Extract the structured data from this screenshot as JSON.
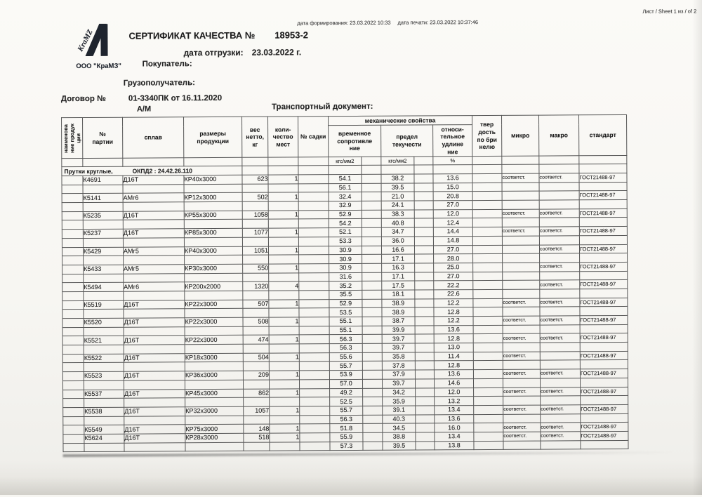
{
  "page": {
    "sheet_label": "Лист / Sheet   1 из / of   2",
    "formation_date": "дата формирования: 23.03.2022 10:33",
    "print_date": "дата печати: 23.03.2022 10:37:46"
  },
  "header": {
    "logo_brand": "KraMZ",
    "company_name": "ООО \"КраМЗ\"",
    "title": "СЕРТИФИКАТ КАЧЕСТВА №",
    "certificate_number": "18953-2",
    "shipping_date_label": "дата отгрузки:",
    "shipping_date_value": "23.03.2022 г.",
    "buyer_label": "Покупатель:",
    "consignee_label": "Грузополучатель:",
    "contract_label": "Договор №",
    "contract_value": "01-3340ПК от 16.11.2020",
    "transport_type": "А/М",
    "transport_doc_label": "Транспортный документ:"
  },
  "table": {
    "headers": {
      "product_name": "наименова\nние продук\nции",
      "batch": "№\nпартии",
      "alloy": "сплав",
      "size": "размеры\nпродукции",
      "weight": "вес\nнетто,\nкг",
      "places": "коли-\nчество\nмест",
      "sadka": "№ садки",
      "mech_group": "механические свойства",
      "tensile": "временное\nсопротивле\nние",
      "yield": "предел\nтекучести",
      "elongation": "относи-\nтельное\nудлине\nние",
      "hardness": "твер\nдость\nпо бри\nнелю",
      "micro": "микро",
      "macro": "макро",
      "standard": "стандарт",
      "unit_kgs1": "кгс/мм2",
      "unit_kgs2": "кгс/мм2",
      "unit_pct": "%"
    },
    "section": {
      "title": "Прутки круглые,",
      "okpd": "ОКПД2 : 24.42.26.110"
    },
    "rows": [
      {
        "batch": "К4691",
        "alloy": "Д16Т",
        "size": "КР40х3000",
        "weight": "623",
        "places": "1",
        "lines": [
          {
            "tensile": "54.1",
            "yield": "38.2",
            "elong": "13.6",
            "micro": "соответст.",
            "macro": "соответст.",
            "standard": "ГОСТ21488-97"
          },
          {
            "tensile": "56.1",
            "yield": "39.5",
            "elong": "15.0"
          }
        ]
      },
      {
        "batch": "К5141",
        "alloy": "АМг6",
        "size": "КР12х3000",
        "weight": "502",
        "places": "1",
        "lines": [
          {
            "tensile": "32.4",
            "yield": "21.0",
            "elong": "20.8",
            "standard": "ГОСТ21488-97"
          },
          {
            "tensile": "32.9",
            "yield": "24.1",
            "elong": "27.0"
          }
        ]
      },
      {
        "batch": "К5235",
        "alloy": "Д16Т",
        "size": "КР55х3000",
        "weight": "1058",
        "places": "1",
        "lines": [
          {
            "tensile": "52.9",
            "yield": "38.3",
            "elong": "12.0",
            "micro": "соответст.",
            "macro": "соответст.",
            "standard": "ГОСТ21488-97"
          },
          {
            "tensile": "54.2",
            "yield": "40.8",
            "elong": "12.4"
          }
        ]
      },
      {
        "batch": "К5237",
        "alloy": "Д16Т",
        "size": "КР85х3000",
        "weight": "1077",
        "places": "1",
        "lines": [
          {
            "tensile": "52.1",
            "yield": "34.7",
            "elong": "14.4",
            "micro": "соответст.",
            "macro": "соответст.",
            "standard": "ГОСТ21488-97"
          },
          {
            "tensile": "53.3",
            "yield": "36.0",
            "elong": "14.8"
          }
        ]
      },
      {
        "batch": "К5429",
        "alloy": "АМг5",
        "size": "КР40х3000",
        "weight": "1051",
        "places": "1",
        "lines": [
          {
            "tensile": "30.9",
            "yield": "16.6",
            "elong": "27.0",
            "macro": "соответст.",
            "standard": "ГОСТ21488-97"
          },
          {
            "tensile": "30.9",
            "yield": "17.1",
            "elong": "28.0"
          }
        ]
      },
      {
        "batch": "К5433",
        "alloy": "АМг5",
        "size": "КР30х3000",
        "weight": "550",
        "places": "1",
        "lines": [
          {
            "tensile": "30.9",
            "yield": "16.3",
            "elong": "25.0",
            "macro": "соответст.",
            "standard": "ГОСТ21488-97"
          },
          {
            "tensile": "31.6",
            "yield": "17.1",
            "elong": "27.0"
          }
        ]
      },
      {
        "batch": "К5494",
        "alloy": "АМг6",
        "size": "КР200х2000",
        "weight": "1320",
        "places": "4",
        "lines": [
          {
            "tensile": "35.2",
            "yield": "17.5",
            "elong": "22.2",
            "macro": "соответст.",
            "standard": "ГОСТ21488-97"
          },
          {
            "tensile": "35.5",
            "yield": "18.1",
            "elong": "22.6"
          }
        ]
      },
      {
        "batch": "К5519",
        "alloy": "Д16Т",
        "size": "КР22х3000",
        "weight": "507",
        "places": "1",
        "lines": [
          {
            "tensile": "52.9",
            "yield": "38.9",
            "elong": "12.2",
            "micro": "соответст.",
            "macro": "соответст.",
            "standard": "ГОСТ21488-97"
          },
          {
            "tensile": "53.5",
            "yield": "38.9",
            "elong": "12.8"
          }
        ]
      },
      {
        "batch": "К5520",
        "alloy": "Д16Т",
        "size": "КР22х3000",
        "weight": "508",
        "places": "1",
        "lines": [
          {
            "tensile": "55.1",
            "yield": "38.7",
            "elong": "12.2",
            "micro": "соответст.",
            "macro": "соответст.",
            "standard": "ГОСТ21488-97"
          },
          {
            "tensile": "55.1",
            "yield": "39.9",
            "elong": "13.6"
          }
        ]
      },
      {
        "batch": "К5521",
        "alloy": "Д16Т",
        "size": "КР22х3000",
        "weight": "474",
        "places": "1",
        "lines": [
          {
            "tensile": "56.3",
            "yield": "39.7",
            "elong": "12.8",
            "micro": "соответст.",
            "macro": "соответст.",
            "standard": "ГОСТ21488-97"
          },
          {
            "tensile": "56.3",
            "yield": "39.7",
            "elong": "13.0"
          }
        ]
      },
      {
        "batch": "К5522",
        "alloy": "Д16Т",
        "size": "КР18х3000",
        "weight": "504",
        "places": "1",
        "lines": [
          {
            "tensile": "55.6",
            "yield": "35.8",
            "elong": "11.4",
            "micro": "соответст.",
            "standard": "ГОСТ21488-97"
          },
          {
            "tensile": "55.7",
            "yield": "37.8",
            "elong": "12.8"
          }
        ]
      },
      {
        "batch": "К5523",
        "alloy": "Д16Т",
        "size": "КР36х3000",
        "weight": "209",
        "places": "1",
        "lines": [
          {
            "tensile": "53.9",
            "yield": "37.9",
            "elong": "13.6",
            "micro": "соответст.",
            "macro": "соответст.",
            "standard": "ГОСТ21488-97"
          },
          {
            "tensile": "57.0",
            "yield": "39.7",
            "elong": "14.6"
          }
        ]
      },
      {
        "batch": "К5537",
        "alloy": "Д16Т",
        "size": "КР45х3000",
        "weight": "862",
        "places": "1",
        "lines": [
          {
            "tensile": "49.2",
            "yield": "34.2",
            "elong": "12.0",
            "micro": "соответст.",
            "macro": "соответст.",
            "standard": "ГОСТ21488-97"
          },
          {
            "tensile": "52.5",
            "yield": "35.9",
            "elong": "13.2"
          }
        ]
      },
      {
        "batch": "К5538",
        "alloy": "Д16Т",
        "size": "КР32х3000",
        "weight": "1057",
        "places": "1",
        "lines": [
          {
            "tensile": "55.7",
            "yield": "39.1",
            "elong": "13.4",
            "micro": "соответст.",
            "macro": "соответст.",
            "standard": "ГОСТ21488-97"
          },
          {
            "tensile": "56.3",
            "yield": "40.3",
            "elong": "13.6"
          }
        ]
      },
      {
        "batch": "К5549",
        "alloy": "Д16Т",
        "size": "КР75х3000",
        "weight": "148",
        "places": "1",
        "lines": [
          {
            "tensile": "51.8",
            "yield": "34.5",
            "elong": "16.0",
            "micro": "соответст.",
            "macro": "соответст.",
            "standard": "ГОСТ21488-97"
          }
        ]
      },
      {
        "batch": "К5624",
        "alloy": "Д16Т",
        "size": "КР28х3000",
        "weight": "518",
        "places": "1",
        "lines": [
          {
            "tensile": "55.9",
            "yield": "38.8",
            "elong": "13.4",
            "micro": "соответст.",
            "macro": "соответст.",
            "standard": "ГОСТ21488-97"
          },
          {
            "tensile": "57.3",
            "yield": "39.5",
            "elong": "13.8"
          }
        ]
      }
    ]
  }
}
